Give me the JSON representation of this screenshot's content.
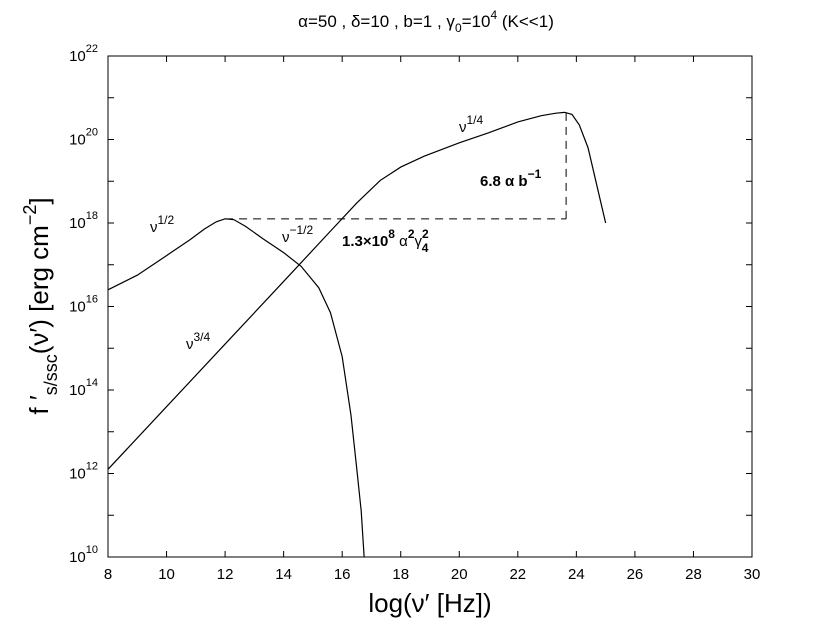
{
  "chart_data": {
    "type": "line",
    "title": {
      "prefix": "α=50 , δ=10 , b=1 , γ",
      "gamma_sub": "0",
      "eq": "=10",
      "exp": "4",
      "suffix": " (K<<1)"
    },
    "xlabel": "log(ν′  [Hz])",
    "ylabel": {
      "main": "f ′",
      "sub": "s/ssc",
      "paren": "(ν′)  [erg cm",
      "exp": "−2",
      "close": "]"
    },
    "xlim": [
      8,
      30
    ],
    "ylim_log10": [
      10,
      22
    ],
    "y_scale": "log",
    "grid": false,
    "legend": "none",
    "x_ticks": [
      8,
      10,
      12,
      14,
      16,
      18,
      20,
      22,
      24,
      26,
      28,
      30
    ],
    "y_ticks": [
      {
        "base": "10",
        "exp": "10",
        "value_log10": 10
      },
      {
        "base": "10",
        "exp": "12",
        "value_log10": 12
      },
      {
        "base": "10",
        "exp": "14",
        "value_log10": 14
      },
      {
        "base": "10",
        "exp": "16",
        "value_log10": 16
      },
      {
        "base": "10",
        "exp": "18",
        "value_log10": 18
      },
      {
        "base": "10",
        "exp": "20",
        "value_log10": 20
      },
      {
        "base": "10",
        "exp": "22",
        "value_log10": 22
      }
    ],
    "series": [
      {
        "x": [
          8.0,
          9.0,
          10.0,
          10.8,
          11.3,
          11.7,
          12.0,
          12.3,
          12.7,
          13.3,
          14.0,
          14.6,
          15.2,
          15.6,
          16.0,
          16.3,
          16.5,
          16.65,
          16.75
        ],
        "y_log10": [
          16.4,
          16.75,
          17.22,
          17.6,
          17.86,
          18.03,
          18.1,
          18.08,
          17.92,
          17.62,
          17.29,
          16.96,
          16.45,
          15.85,
          14.8,
          13.4,
          12.1,
          11.1,
          10.0
        ]
      },
      {
        "x": [
          8.0,
          10.0,
          12.0,
          14.0,
          15.5,
          16.5,
          17.3,
          18.0,
          18.8,
          20.0,
          21.0,
          22.0,
          22.8,
          23.3,
          23.6,
          23.85,
          24.1,
          24.4,
          24.7,
          25.0
        ],
        "y_log10": [
          12.1,
          13.6,
          15.1,
          16.6,
          17.73,
          18.48,
          19.02,
          19.34,
          19.6,
          19.92,
          20.16,
          20.42,
          20.57,
          20.63,
          20.65,
          20.6,
          20.35,
          19.8,
          18.9,
          18.0
        ]
      }
    ],
    "annotations": {
      "nu_half": {
        "base": "ν",
        "exp": "1/2"
      },
      "nu_minus_half": {
        "base": "ν",
        "exp": "−1/2"
      },
      "nu_three_quarter": {
        "base": "ν",
        "exp": "3/4"
      },
      "nu_quarter": {
        "base": "ν",
        "exp": "1/4"
      },
      "vertical_gap": {
        "text": "6.8 α b",
        "exp": "−1"
      },
      "horizontal_gap": {
        "prefix": "1.3×10",
        "exp8": "8",
        "alpha": " α",
        "alpha_exp": "2",
        "gamma": "γ",
        "gamma_exp": "2",
        "gamma_sub": "4"
      }
    },
    "guides": {
      "horizontal": {
        "x": [
          12.0,
          23.65
        ],
        "y_log10": 18.1
      },
      "vertical": {
        "x": 23.65,
        "y_log10": [
          18.1,
          20.65
        ]
      }
    }
  }
}
